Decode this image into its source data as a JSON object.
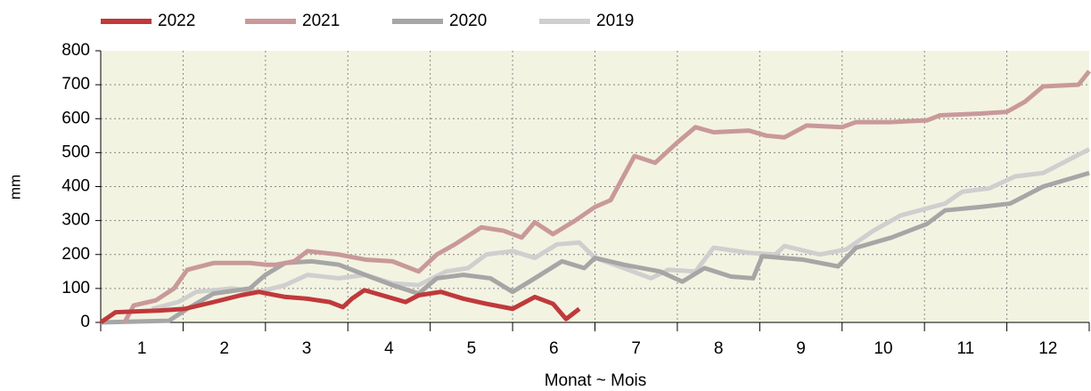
{
  "chart_data": {
    "type": "line",
    "xlabel": "Monat  ~  Mois",
    "ylabel": "mm",
    "categories": [
      "1",
      "2",
      "3",
      "4",
      "5",
      "6",
      "7",
      "8",
      "9",
      "10",
      "11",
      "12"
    ],
    "xlim": [
      0,
      12
    ],
    "ylim": [
      0,
      800
    ],
    "yticks": [
      0,
      100,
      200,
      300,
      400,
      500,
      600,
      700,
      800
    ],
    "grid": true,
    "legend": "top-left",
    "series": [
      {
        "name": "2022",
        "color": "#c0393b",
        "x": [
          0,
          0.18,
          0.72,
          1.02,
          1.37,
          1.7,
          1.92,
          2.02,
          2.24,
          2.5,
          2.78,
          2.94,
          3.05,
          3.2,
          3.7,
          3.86,
          4.13,
          4.4,
          4.68,
          5.0,
          5.27,
          5.49,
          5.65,
          5.81
        ],
        "values": [
          0,
          30,
          35,
          40,
          60,
          80,
          90,
          85,
          75,
          70,
          60,
          45,
          70,
          95,
          60,
          80,
          90,
          70,
          55,
          40,
          75,
          55,
          10,
          40
        ]
      },
      {
        "name": "2021",
        "color": "#c9999a",
        "x": [
          0.29,
          0.4,
          0.67,
          0.89,
          1.05,
          1.37,
          1.81,
          2.0,
          2.13,
          2.35,
          2.51,
          2.89,
          3.21,
          3.54,
          3.86,
          4.08,
          4.3,
          4.62,
          4.89,
          5.11,
          5.27,
          5.49,
          5.76,
          6.0,
          6.19,
          6.48,
          6.73,
          7.0,
          7.22,
          7.44,
          7.87,
          8.08,
          8.3,
          8.57,
          9.0,
          9.17,
          9.6,
          10.03,
          10.19,
          10.68,
          11.0,
          11.22,
          11.44,
          11.87,
          12
        ],
        "values": [
          0,
          50,
          65,
          100,
          155,
          175,
          175,
          170,
          170,
          180,
          210,
          200,
          185,
          180,
          150,
          200,
          230,
          280,
          270,
          250,
          295,
          260,
          300,
          340,
          360,
          490,
          470,
          530,
          575,
          560,
          565,
          550,
          545,
          580,
          575,
          590,
          590,
          595,
          610,
          615,
          620,
          650,
          695,
          700,
          740
        ]
      },
      {
        "name": "2020",
        "color": "#a6a6a6",
        "x": [
          0,
          0.83,
          1.05,
          1.37,
          1.81,
          2.0,
          2.24,
          2.56,
          2.89,
          3.21,
          3.54,
          3.86,
          4.08,
          4.4,
          4.73,
          5.0,
          5.27,
          5.6,
          5.87,
          6.0,
          6.35,
          6.79,
          7.06,
          7.33,
          7.65,
          7.92,
          8.03,
          8.52,
          8.95,
          9.17,
          9.6,
          10.03,
          10.25,
          10.68,
          11.04,
          11.44,
          12
        ],
        "values": [
          0,
          5,
          40,
          85,
          100,
          140,
          175,
          180,
          170,
          140,
          110,
          85,
          130,
          140,
          130,
          90,
          130,
          180,
          160,
          190,
          170,
          150,
          120,
          160,
          135,
          130,
          195,
          185,
          165,
          220,
          250,
          290,
          330,
          340,
          350,
          400,
          440
        ]
      },
      {
        "name": "2019",
        "color": "#cfcfcf",
        "x": [
          0.62,
          0.94,
          1.16,
          1.59,
          1.92,
          2.24,
          2.51,
          2.89,
          3.21,
          3.54,
          3.86,
          4.19,
          4.46,
          4.68,
          5.0,
          5.27,
          5.54,
          5.81,
          6.0,
          6.35,
          6.68,
          6.89,
          7.22,
          7.44,
          7.87,
          8.19,
          8.3,
          8.73,
          9.05,
          9.38,
          9.71,
          10.25,
          10.46,
          10.79,
          11.1,
          11.44,
          11.76,
          12
        ],
        "values": [
          40,
          60,
          90,
          100,
          90,
          110,
          140,
          130,
          140,
          115,
          110,
          150,
          160,
          200,
          210,
          190,
          230,
          235,
          190,
          160,
          130,
          155,
          150,
          220,
          205,
          200,
          225,
          200,
          215,
          270,
          315,
          350,
          385,
          395,
          430,
          440,
          480,
          510
        ]
      }
    ]
  }
}
